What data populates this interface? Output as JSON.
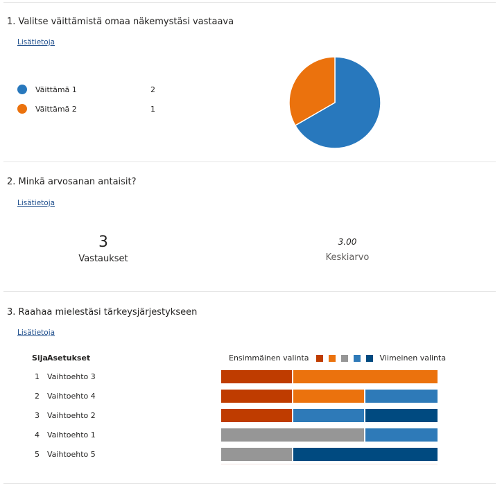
{
  "more_label": "Lisätietoja",
  "colors": {
    "series1": "#2878bd",
    "series2": "#eb720d",
    "rank": [
      "#bf3c00",
      "#eb720d",
      "#969696",
      "#2e7ab8",
      "#004a80"
    ]
  },
  "q1": {
    "title": "1.  Valitse väittämistä omaa näkemystäsi vastaava",
    "items": [
      {
        "label": "Väittämä 1",
        "count": "2",
        "value": 2
      },
      {
        "label": "Väittämä 2",
        "count": "1",
        "value": 1
      }
    ]
  },
  "q2": {
    "title": "2.  Minkä arvosanan antaisit?",
    "responses": "3",
    "responses_label": "Vastaukset",
    "average": "3.00",
    "average_label": "Keskiarvo"
  },
  "q3": {
    "title": "3.  Raahaa mielestäsi tärkeysjärjestykseen",
    "col_rank": "Sija",
    "col_options": "Asetukset",
    "legend_first": "Ensimmäinen valinta",
    "legend_last": "Viimeinen valinta",
    "rows": [
      {
        "rank": "1",
        "label": "Vaihtoehto 3",
        "counts": [
          1,
          2,
          0,
          0,
          0
        ]
      },
      {
        "rank": "2",
        "label": "Vaihtoehto 4",
        "counts": [
          1,
          1,
          0,
          1,
          0
        ]
      },
      {
        "rank": "3",
        "label": "Vaihtoehto 2",
        "counts": [
          1,
          0,
          0,
          1,
          1
        ]
      },
      {
        "rank": "4",
        "label": "Vaihtoehto 1",
        "counts": [
          0,
          0,
          2,
          1,
          0
        ]
      },
      {
        "rank": "5",
        "label": "Vaihtoehto 5",
        "counts": [
          0,
          0,
          1,
          0,
          2
        ]
      }
    ]
  }
}
